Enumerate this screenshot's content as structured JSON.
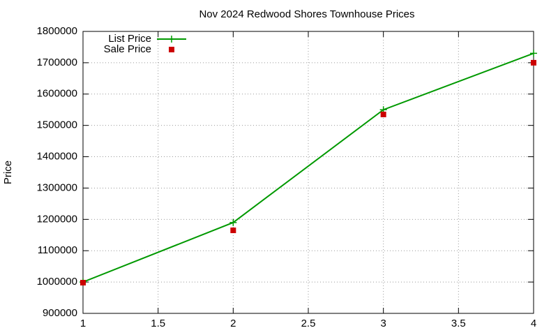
{
  "chart_data": {
    "type": "line",
    "title": "Nov 2024 Redwood Shores Townhouse Prices",
    "y_label": "Price",
    "x": [
      1,
      2,
      3,
      4
    ],
    "series": [
      {
        "name": "List Price",
        "color": "#009900",
        "marker": "plus",
        "line": true,
        "values": [
          1000000,
          1190000,
          1550000,
          1730000
        ]
      },
      {
        "name": "Sale Price",
        "color": "#cc0000",
        "marker": "square",
        "line": false,
        "values": [
          998000,
          1165000,
          1535000,
          1700000
        ]
      }
    ],
    "xlim": [
      1,
      4
    ],
    "xticks": [
      1,
      1.5,
      2,
      2.5,
      3,
      3.5,
      4
    ],
    "ylim": [
      900000,
      1800000
    ],
    "yticks": [
      900000,
      1000000,
      1100000,
      1200000,
      1300000,
      1400000,
      1500000,
      1600000,
      1700000,
      1800000
    ],
    "grid": true,
    "legend": "top-left"
  }
}
